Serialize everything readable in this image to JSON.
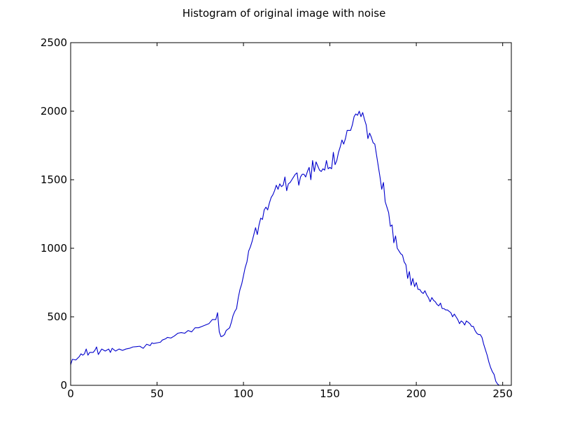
{
  "chart_data": {
    "type": "line",
    "title": "Histogram of original image with noise",
    "xlabel": "",
    "ylabel": "",
    "xlim": [
      0,
      255
    ],
    "ylim": [
      0,
      2500
    ],
    "xticks": [
      0,
      50,
      100,
      150,
      200,
      250
    ],
    "yticks": [
      0,
      500,
      1000,
      1500,
      2000,
      2500
    ],
    "grid": false,
    "line_color": "#0000cc",
    "series": [
      {
        "points": [
          [
            0,
            150
          ],
          [
            1,
            190
          ],
          [
            3,
            185
          ],
          [
            5,
            210
          ],
          [
            6,
            230
          ],
          [
            7,
            220
          ],
          [
            8,
            230
          ],
          [
            9,
            265
          ],
          [
            10,
            220
          ],
          [
            11,
            240
          ],
          [
            13,
            240
          ],
          [
            14,
            255
          ],
          [
            15,
            280
          ],
          [
            16,
            225
          ],
          [
            17,
            245
          ],
          [
            18,
            265
          ],
          [
            20,
            250
          ],
          [
            22,
            265
          ],
          [
            23,
            240
          ],
          [
            24,
            270
          ],
          [
            26,
            250
          ],
          [
            28,
            265
          ],
          [
            30,
            255
          ],
          [
            32,
            265
          ],
          [
            34,
            270
          ],
          [
            36,
            280
          ],
          [
            38,
            282
          ],
          [
            40,
            285
          ],
          [
            42,
            270
          ],
          [
            44,
            300
          ],
          [
            46,
            290
          ],
          [
            47,
            310
          ],
          [
            48,
            305
          ],
          [
            50,
            310
          ],
          [
            52,
            315
          ],
          [
            53,
            330
          ],
          [
            55,
            340
          ],
          [
            56,
            350
          ],
          [
            58,
            345
          ],
          [
            60,
            360
          ],
          [
            62,
            380
          ],
          [
            64,
            385
          ],
          [
            66,
            380
          ],
          [
            68,
            400
          ],
          [
            70,
            390
          ],
          [
            72,
            420
          ],
          [
            74,
            420
          ],
          [
            76,
            430
          ],
          [
            78,
            440
          ],
          [
            80,
            450
          ],
          [
            82,
            480
          ],
          [
            84,
            480
          ],
          [
            85,
            530
          ],
          [
            86,
            390
          ],
          [
            87,
            355
          ],
          [
            88,
            360
          ],
          [
            89,
            370
          ],
          [
            90,
            400
          ],
          [
            91,
            410
          ],
          [
            92,
            420
          ],
          [
            93,
            460
          ],
          [
            94,
            510
          ],
          [
            95,
            540
          ],
          [
            96,
            560
          ],
          [
            97,
            640
          ],
          [
            98,
            700
          ],
          [
            99,
            740
          ],
          [
            100,
            800
          ],
          [
            101,
            860
          ],
          [
            102,
            900
          ],
          [
            103,
            980
          ],
          [
            104,
            1010
          ],
          [
            105,
            1050
          ],
          [
            106,
            1100
          ],
          [
            107,
            1150
          ],
          [
            108,
            1100
          ],
          [
            109,
            1170
          ],
          [
            110,
            1220
          ],
          [
            111,
            1210
          ],
          [
            112,
            1280
          ],
          [
            113,
            1300
          ],
          [
            114,
            1280
          ],
          [
            115,
            1330
          ],
          [
            116,
            1370
          ],
          [
            117,
            1390
          ],
          [
            118,
            1420
          ],
          [
            119,
            1460
          ],
          [
            120,
            1430
          ],
          [
            121,
            1470
          ],
          [
            122,
            1450
          ],
          [
            123,
            1460
          ],
          [
            124,
            1520
          ],
          [
            125,
            1420
          ],
          [
            126,
            1470
          ],
          [
            127,
            1480
          ],
          [
            128,
            1500
          ],
          [
            129,
            1520
          ],
          [
            130,
            1540
          ],
          [
            131,
            1550
          ],
          [
            132,
            1460
          ],
          [
            133,
            1520
          ],
          [
            134,
            1540
          ],
          [
            135,
            1540
          ],
          [
            136,
            1520
          ],
          [
            137,
            1560
          ],
          [
            138,
            1590
          ],
          [
            139,
            1500
          ],
          [
            140,
            1640
          ],
          [
            141,
            1560
          ],
          [
            142,
            1630
          ],
          [
            143,
            1600
          ],
          [
            144,
            1570
          ],
          [
            145,
            1560
          ],
          [
            146,
            1580
          ],
          [
            147,
            1570
          ],
          [
            148,
            1640
          ],
          [
            149,
            1580
          ],
          [
            150,
            1590
          ],
          [
            151,
            1580
          ],
          [
            152,
            1700
          ],
          [
            153,
            1610
          ],
          [
            154,
            1640
          ],
          [
            155,
            1700
          ],
          [
            156,
            1740
          ],
          [
            157,
            1790
          ],
          [
            158,
            1760
          ],
          [
            159,
            1800
          ],
          [
            160,
            1860
          ],
          [
            161,
            1860
          ],
          [
            162,
            1860
          ],
          [
            163,
            1900
          ],
          [
            164,
            1960
          ],
          [
            165,
            1980
          ],
          [
            166,
            1970
          ],
          [
            167,
            2000
          ],
          [
            168,
            1960
          ],
          [
            169,
            1990
          ],
          [
            170,
            1940
          ],
          [
            171,
            1900
          ],
          [
            172,
            1800
          ],
          [
            173,
            1840
          ],
          [
            174,
            1810
          ],
          [
            175,
            1770
          ],
          [
            176,
            1760
          ],
          [
            177,
            1680
          ],
          [
            178,
            1600
          ],
          [
            179,
            1520
          ],
          [
            180,
            1430
          ],
          [
            181,
            1480
          ],
          [
            182,
            1340
          ],
          [
            183,
            1300
          ],
          [
            184,
            1260
          ],
          [
            185,
            1160
          ],
          [
            186,
            1170
          ],
          [
            187,
            1040
          ],
          [
            188,
            1090
          ],
          [
            189,
            1000
          ],
          [
            190,
            980
          ],
          [
            191,
            960
          ],
          [
            192,
            950
          ],
          [
            193,
            900
          ],
          [
            194,
            880
          ],
          [
            195,
            780
          ],
          [
            196,
            830
          ],
          [
            197,
            730
          ],
          [
            198,
            780
          ],
          [
            199,
            720
          ],
          [
            200,
            750
          ],
          [
            201,
            700
          ],
          [
            202,
            700
          ],
          [
            203,
            680
          ],
          [
            204,
            670
          ],
          [
            205,
            690
          ],
          [
            206,
            660
          ],
          [
            207,
            640
          ],
          [
            208,
            610
          ],
          [
            209,
            640
          ],
          [
            210,
            620
          ],
          [
            211,
            610
          ],
          [
            212,
            590
          ],
          [
            213,
            580
          ],
          [
            214,
            600
          ],
          [
            215,
            560
          ],
          [
            216,
            560
          ],
          [
            217,
            550
          ],
          [
            218,
            550
          ],
          [
            219,
            540
          ],
          [
            220,
            530
          ],
          [
            221,
            500
          ],
          [
            222,
            520
          ],
          [
            223,
            500
          ],
          [
            224,
            480
          ],
          [
            225,
            450
          ],
          [
            226,
            470
          ],
          [
            227,
            460
          ],
          [
            228,
            440
          ],
          [
            229,
            470
          ],
          [
            230,
            460
          ],
          [
            231,
            450
          ],
          [
            232,
            430
          ],
          [
            233,
            430
          ],
          [
            234,
            400
          ],
          [
            235,
            380
          ],
          [
            236,
            370
          ],
          [
            237,
            370
          ],
          [
            238,
            350
          ],
          [
            239,
            300
          ],
          [
            240,
            260
          ],
          [
            241,
            220
          ],
          [
            242,
            170
          ],
          [
            243,
            130
          ],
          [
            244,
            100
          ],
          [
            245,
            80
          ],
          [
            246,
            30
          ],
          [
            247,
            10
          ],
          [
            248,
            0
          ],
          [
            250,
            0
          ]
        ]
      }
    ]
  }
}
